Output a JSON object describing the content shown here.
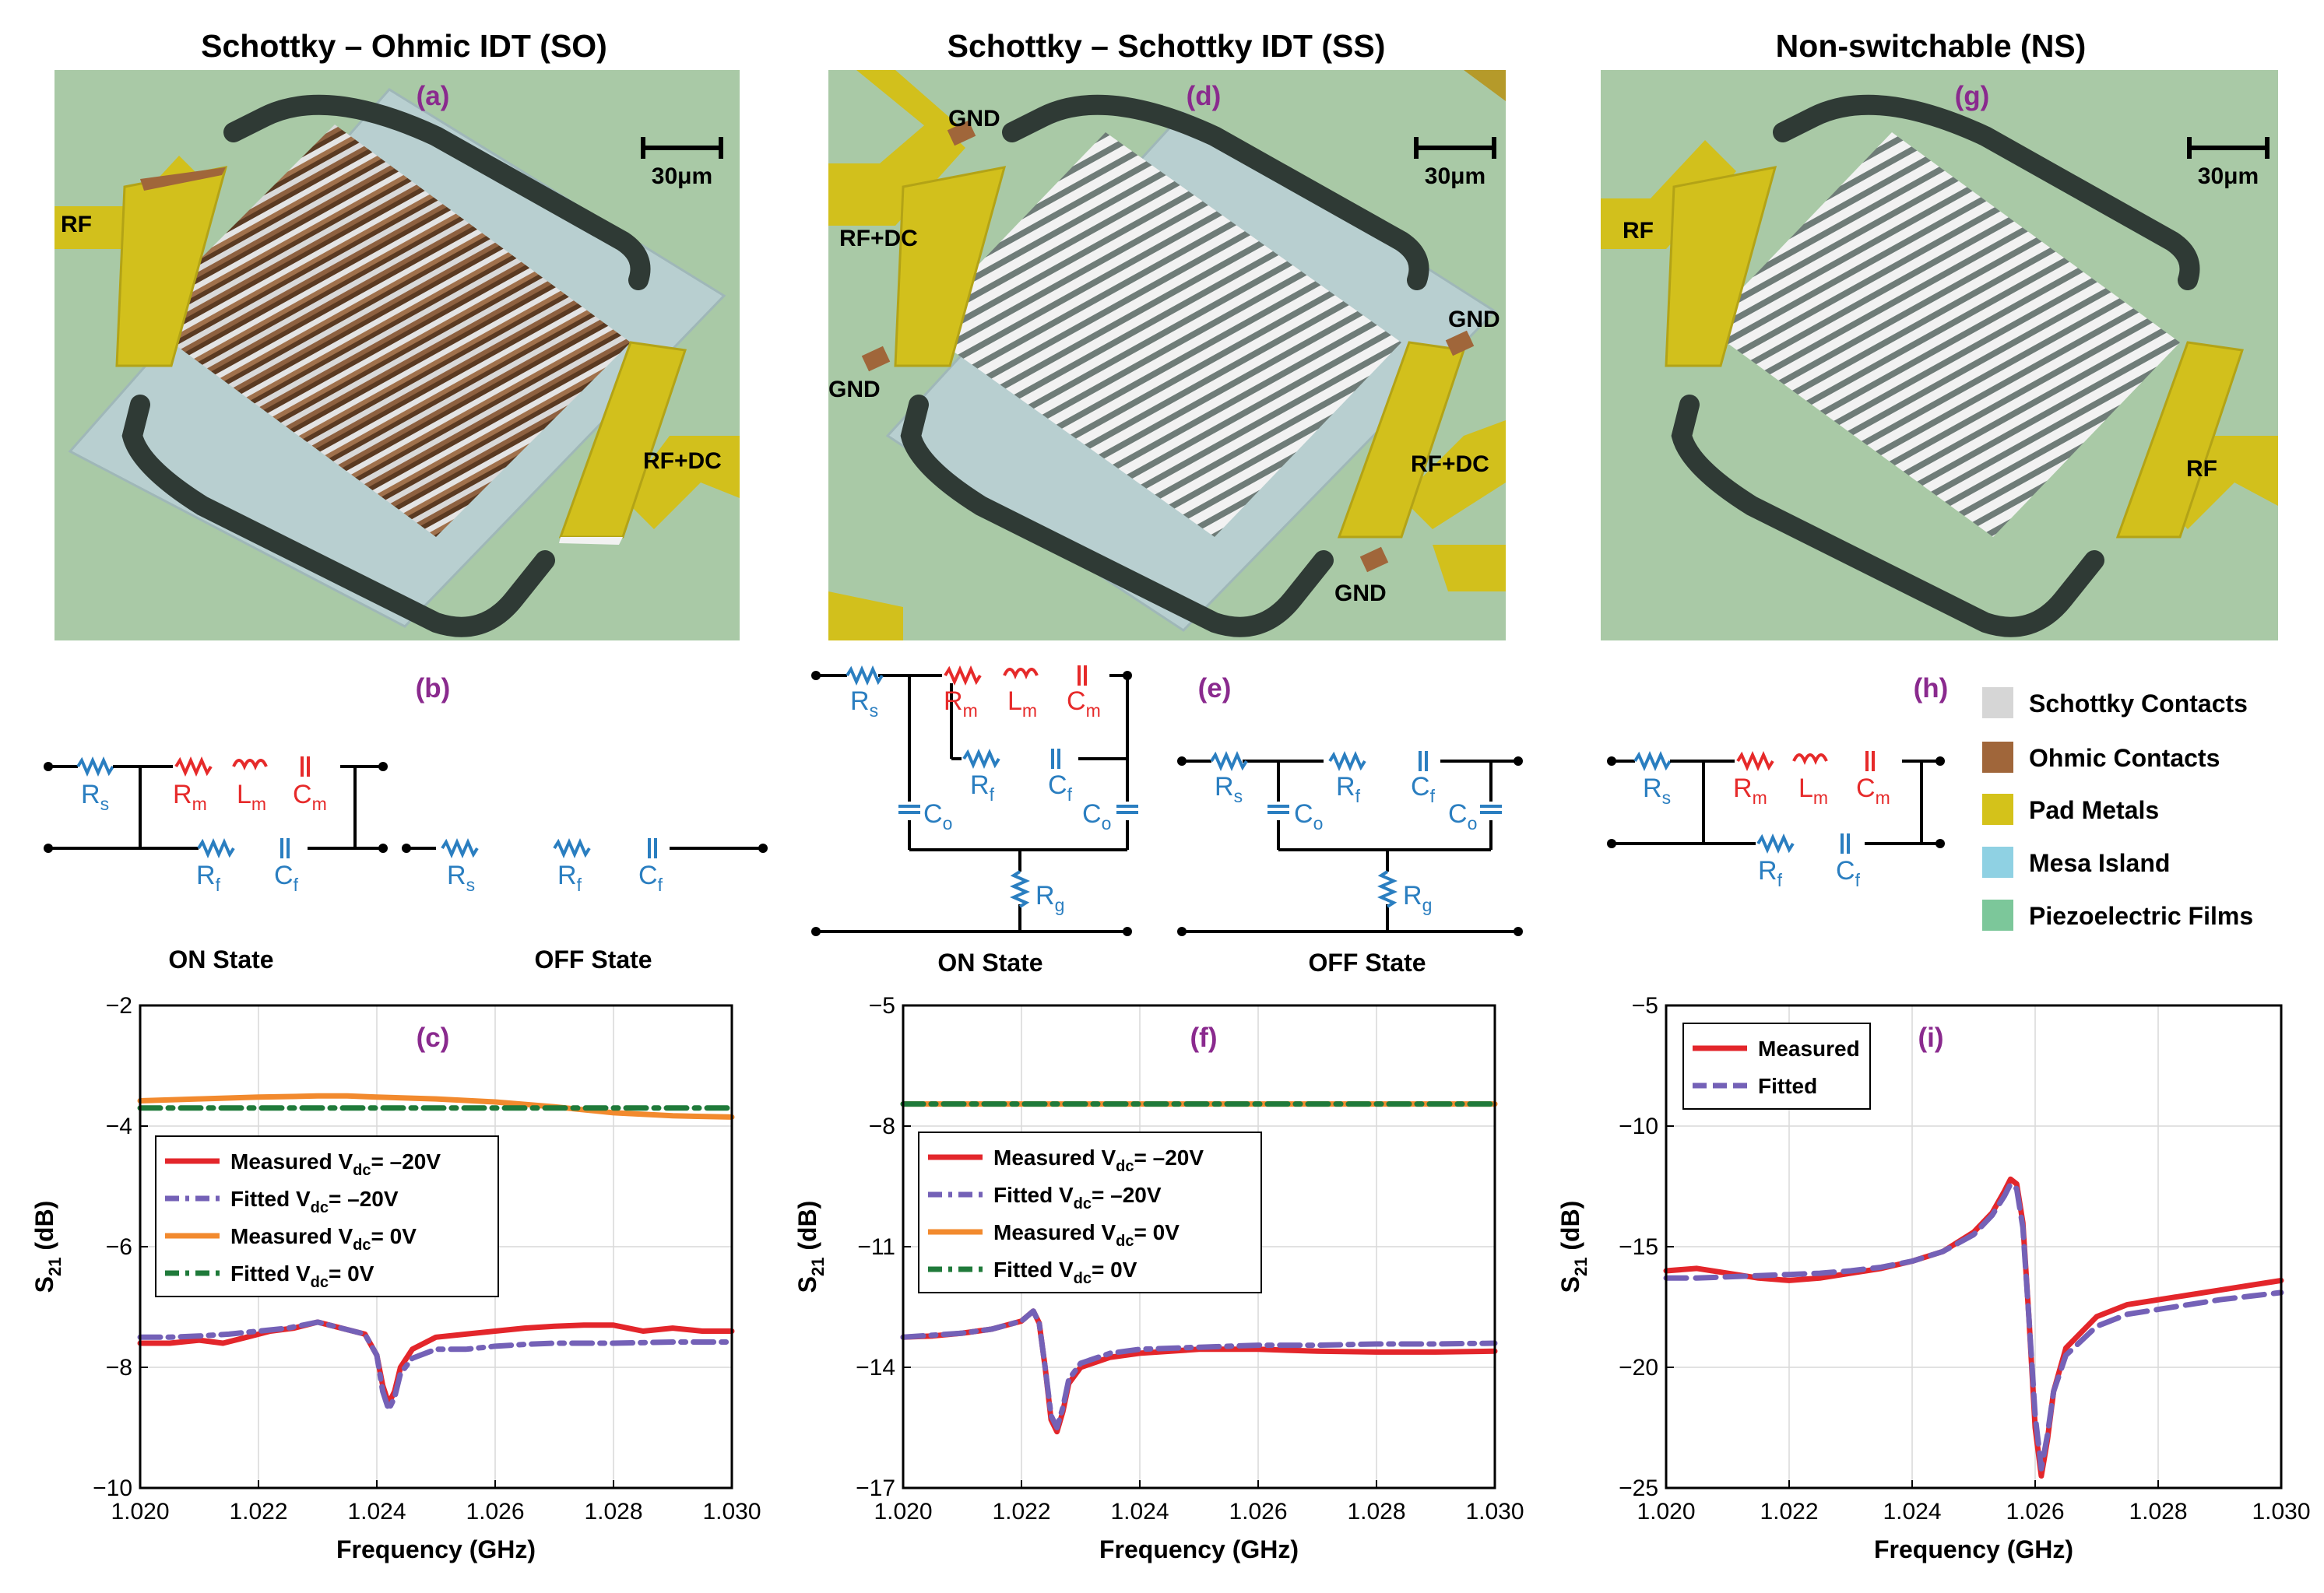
{
  "headings": {
    "so": "Schottky – Ohmic IDT (SO)",
    "ss": "Schottky – Schottky IDT (SS)",
    "ns": "Non-switchable (NS)"
  },
  "panel_labels": [
    "(a)",
    "(b)",
    "(c)",
    "(d)",
    "(e)",
    "(f)",
    "(g)",
    "(h)",
    "(i)"
  ],
  "scale_bar": "30μm",
  "device_labels": {
    "a_rf": "RF",
    "a_rfdc": "RF+DC",
    "d_gnd_tl": "GND",
    "d_rfdc_l": "RF+DC",
    "d_gnd_bl": "GND",
    "d_gnd_r": "GND",
    "d_rfdc_r": "RF+DC",
    "d_gnd_br": "GND",
    "g_rf_l": "RF",
    "g_rf_r": "RF"
  },
  "states": {
    "on": "ON State",
    "off": "OFF State"
  },
  "symbols": {
    "Rs": [
      "R",
      "s"
    ],
    "Rm": [
      "R",
      "m"
    ],
    "Lm": [
      "L",
      "m"
    ],
    "Cm": [
      "C",
      "m"
    ],
    "Rf": [
      "R",
      "f"
    ],
    "Cf": [
      "C",
      "f"
    ],
    "Co": [
      "C",
      "o"
    ],
    "Rg": [
      "R",
      "g"
    ]
  },
  "legend_materials": [
    {
      "label": "Schottky Contacts",
      "color": "#d6d6d6"
    },
    {
      "label": "Ohmic Contacts",
      "color": "#a0663a"
    },
    {
      "label": "Pad Metals",
      "color": "#d4c21a"
    },
    {
      "label": "Mesa Island",
      "color": "#8fd1e3"
    },
    {
      "label": "Piezoelectric Films",
      "color": "#7cc79a"
    }
  ],
  "colors": {
    "background_film": "#a9c9a6",
    "mesa": "#b8cfd0",
    "pad": "#d2c01c",
    "ohmic": "#9a6a3e",
    "trench": "#2f3a35",
    "red": "#e62a2a",
    "blue": "#2a7ec0",
    "purple_label": "#8a2a8e",
    "measured": "#e3262b",
    "fitted": "#7461b7",
    "measured0": "#f28a2e",
    "fitted0": "#1f7a3a"
  },
  "chart_data": [
    {
      "panel": "(c)",
      "type": "line",
      "xlabel": "Frequency (GHz)",
      "ylabel": [
        "S",
        "21",
        " (dB)"
      ],
      "xlim": [
        1.02,
        1.03
      ],
      "ylim": [
        -10,
        -2
      ],
      "xticks": [
        "1.020",
        "1.022",
        "1.024",
        "1.026",
        "1.028",
        "1.030"
      ],
      "yticks": [
        -10,
        -8,
        -6,
        -4,
        -2
      ],
      "legend": [
        {
          "pre": "Measured V",
          "sub": "dc",
          "post": "= –20V"
        },
        {
          "pre": "Fitted V",
          "sub": "dc",
          "post": "= –20V"
        },
        {
          "pre": "Measured V",
          "sub": "dc",
          "post": "= 0V"
        },
        {
          "pre": "Fitted V",
          "sub": "dc",
          "post": "= 0V"
        }
      ],
      "series": [
        {
          "name": "Measured Vdc=-20V",
          "style": "solid",
          "color": "#e3262b",
          "x": [
            1.02,
            1.0205,
            1.021,
            1.0214,
            1.0218,
            1.0222,
            1.0226,
            1.023,
            1.0234,
            1.0238,
            1.024,
            1.0241,
            1.0242,
            1.0243,
            1.0244,
            1.0246,
            1.025,
            1.0255,
            1.026,
            1.0265,
            1.027,
            1.0275,
            1.028,
            1.0285,
            1.029,
            1.0295,
            1.03
          ],
          "y": [
            -7.6,
            -7.6,
            -7.55,
            -7.6,
            -7.5,
            -7.4,
            -7.35,
            -7.25,
            -7.35,
            -7.45,
            -7.8,
            -8.3,
            -8.6,
            -8.4,
            -8.0,
            -7.7,
            -7.5,
            -7.45,
            -7.4,
            -7.35,
            -7.32,
            -7.3,
            -7.3,
            -7.4,
            -7.35,
            -7.4,
            -7.4
          ]
        },
        {
          "name": "Fitted Vdc=-20V",
          "style": "dashdot",
          "color": "#7461b7",
          "x": [
            1.02,
            1.0205,
            1.021,
            1.0215,
            1.022,
            1.0225,
            1.023,
            1.0234,
            1.0238,
            1.024,
            1.0241,
            1.0242,
            1.0243,
            1.0244,
            1.0246,
            1.025,
            1.0255,
            1.026,
            1.0265,
            1.027,
            1.0275,
            1.028,
            1.029,
            1.03
          ],
          "y": [
            -7.5,
            -7.5,
            -7.48,
            -7.45,
            -7.4,
            -7.35,
            -7.25,
            -7.35,
            -7.45,
            -7.8,
            -8.4,
            -8.7,
            -8.5,
            -8.1,
            -7.85,
            -7.7,
            -7.7,
            -7.65,
            -7.62,
            -7.6,
            -7.6,
            -7.6,
            -7.58,
            -7.58
          ]
        },
        {
          "name": "Measured Vdc=0V",
          "style": "solid",
          "color": "#f28a2e",
          "x": [
            1.02,
            1.021,
            1.022,
            1.023,
            1.0235,
            1.024,
            1.025,
            1.026,
            1.027,
            1.028,
            1.029,
            1.03
          ],
          "y": [
            -3.58,
            -3.55,
            -3.52,
            -3.5,
            -3.5,
            -3.52,
            -3.55,
            -3.6,
            -3.68,
            -3.78,
            -3.83,
            -3.85
          ]
        },
        {
          "name": "Fitted Vdc=0V",
          "style": "dashdot",
          "color": "#1f7a3a",
          "x": [
            1.02,
            1.021,
            1.022,
            1.023,
            1.024,
            1.025,
            1.026,
            1.027,
            1.028,
            1.029,
            1.03
          ],
          "y": [
            -3.7,
            -3.7,
            -3.7,
            -3.7,
            -3.7,
            -3.7,
            -3.7,
            -3.7,
            -3.7,
            -3.7,
            -3.7
          ]
        }
      ]
    },
    {
      "panel": "(f)",
      "type": "line",
      "xlabel": "Frequency (GHz)",
      "ylabel": [
        "S",
        "21",
        " (dB)"
      ],
      "xlim": [
        1.02,
        1.03
      ],
      "ylim": [
        -17,
        -5
      ],
      "xticks": [
        "1.020",
        "1.022",
        "1.024",
        "1.026",
        "1.028",
        "1.030"
      ],
      "yticks": [
        -17,
        -14,
        -11,
        -8,
        -5
      ],
      "legend": [
        {
          "pre": "Measured V",
          "sub": "dc",
          "post": "= –20V"
        },
        {
          "pre": "Fitted V",
          "sub": "dc",
          "post": "= –20V"
        },
        {
          "pre": "Measured V",
          "sub": "dc",
          "post": "= 0V"
        },
        {
          "pre": "Fitted V",
          "sub": "dc",
          "post": "= 0V"
        }
      ],
      "series": [
        {
          "name": "Measured Vdc=-20V",
          "style": "solid",
          "color": "#e3262b",
          "x": [
            1.02,
            1.0205,
            1.021,
            1.0215,
            1.022,
            1.0222,
            1.0223,
            1.0224,
            1.0225,
            1.0226,
            1.0227,
            1.0228,
            1.023,
            1.0235,
            1.024,
            1.025,
            1.026,
            1.027,
            1.028,
            1.029,
            1.03
          ],
          "y": [
            -13.25,
            -13.22,
            -13.15,
            -13.05,
            -12.85,
            -12.6,
            -12.9,
            -14.0,
            -15.3,
            -15.6,
            -15.1,
            -14.4,
            -14.0,
            -13.75,
            -13.65,
            -13.55,
            -13.55,
            -13.6,
            -13.62,
            -13.62,
            -13.6
          ]
        },
        {
          "name": "Fitted Vdc=-20V",
          "style": "dashdot",
          "color": "#7461b7",
          "x": [
            1.02,
            1.0205,
            1.021,
            1.0215,
            1.022,
            1.0222,
            1.0223,
            1.0224,
            1.0225,
            1.0226,
            1.0227,
            1.0228,
            1.023,
            1.0235,
            1.024,
            1.025,
            1.026,
            1.027,
            1.028,
            1.029,
            1.03
          ],
          "y": [
            -13.25,
            -13.2,
            -13.15,
            -13.05,
            -12.85,
            -12.6,
            -12.9,
            -14.0,
            -15.2,
            -15.5,
            -15.0,
            -14.3,
            -13.9,
            -13.65,
            -13.55,
            -13.5,
            -13.45,
            -13.45,
            -13.42,
            -13.42,
            -13.4
          ]
        },
        {
          "name": "Measured Vdc=0V",
          "style": "solid",
          "color": "#f28a2e",
          "x": [
            1.02,
            1.025,
            1.03
          ],
          "y": [
            -7.45,
            -7.45,
            -7.45
          ]
        },
        {
          "name": "Fitted Vdc=0V",
          "style": "dashdot",
          "color": "#1f7a3a",
          "x": [
            1.02,
            1.025,
            1.03
          ],
          "y": [
            -7.45,
            -7.45,
            -7.45
          ]
        }
      ]
    },
    {
      "panel": "(i)",
      "type": "line",
      "xlabel": "Frequency (GHz)",
      "ylabel": [
        "S",
        "21",
        " (dB)"
      ],
      "xlim": [
        1.02,
        1.03
      ],
      "ylim": [
        -25,
        -5
      ],
      "xticks": [
        "1.020",
        "1.022",
        "1.024",
        "1.026",
        "1.028",
        "1.030"
      ],
      "yticks": [
        -25,
        -20,
        -15,
        -10,
        -5
      ],
      "legend": [
        {
          "pre": "Measured",
          "sub": "",
          "post": ""
        },
        {
          "pre": "Fitted",
          "sub": "",
          "post": ""
        }
      ],
      "series": [
        {
          "name": "Measured",
          "style": "solid",
          "color": "#e3262b",
          "x": [
            1.02,
            1.0205,
            1.021,
            1.0215,
            1.022,
            1.0225,
            1.023,
            1.0235,
            1.024,
            1.0245,
            1.025,
            1.0253,
            1.0255,
            1.0256,
            1.0257,
            1.0258,
            1.0259,
            1.026,
            1.0261,
            1.0262,
            1.0263,
            1.0265,
            1.027,
            1.0275,
            1.028,
            1.0285,
            1.029,
            1.0295,
            1.03
          ],
          "y": [
            -16.0,
            -15.9,
            -16.1,
            -16.3,
            -16.4,
            -16.3,
            -16.1,
            -15.9,
            -15.6,
            -15.2,
            -14.4,
            -13.6,
            -12.7,
            -12.2,
            -12.4,
            -14.0,
            -18.0,
            -22.5,
            -24.5,
            -23.0,
            -21.0,
            -19.2,
            -17.9,
            -17.4,
            -17.2,
            -17.0,
            -16.8,
            -16.6,
            -16.4
          ]
        },
        {
          "name": "Fitted",
          "style": "dashed",
          "color": "#7461b7",
          "x": [
            1.02,
            1.0205,
            1.021,
            1.0215,
            1.022,
            1.0225,
            1.023,
            1.0235,
            1.024,
            1.0245,
            1.025,
            1.0253,
            1.0255,
            1.0256,
            1.0257,
            1.0258,
            1.0259,
            1.026,
            1.0261,
            1.0262,
            1.0263,
            1.0265,
            1.027,
            1.0275,
            1.028,
            1.0285,
            1.029,
            1.0295,
            1.03
          ],
          "y": [
            -16.3,
            -16.3,
            -16.25,
            -16.2,
            -16.15,
            -16.1,
            -16.0,
            -15.85,
            -15.6,
            -15.2,
            -14.5,
            -13.7,
            -12.9,
            -12.4,
            -12.6,
            -14.2,
            -18.0,
            -22.0,
            -24.2,
            -22.8,
            -21.0,
            -19.5,
            -18.3,
            -17.8,
            -17.6,
            -17.4,
            -17.2,
            -17.05,
            -16.9
          ]
        }
      ]
    }
  ]
}
